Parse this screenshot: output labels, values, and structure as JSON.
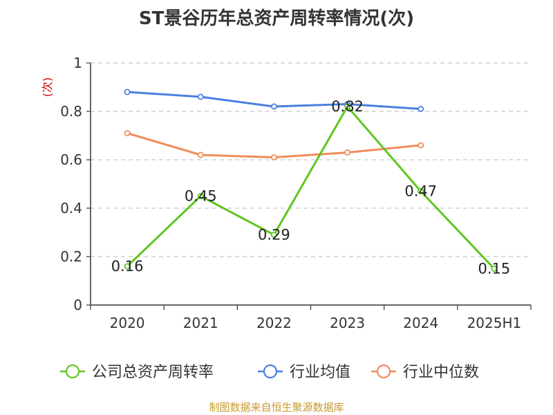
{
  "chart_data": {
    "type": "line",
    "title": "ST景谷历年总资产周转率情况(次)",
    "ylabel": "(次)",
    "xlabel": "",
    "categories": [
      "2020",
      "2021",
      "2022",
      "2023",
      "2024",
      "2025H1"
    ],
    "ylim": [
      0,
      1
    ],
    "yticks": [
      "0",
      "0.2",
      "0.4",
      "0.6",
      "0.8",
      "1"
    ],
    "grid": true,
    "legend_position": "bottom",
    "series": [
      {
        "name": "公司总资产周转率",
        "color": "#5ec61f",
        "values": [
          0.16,
          0.45,
          0.29,
          0.82,
          0.47,
          0.15
        ],
        "data_labels": [
          "0.16",
          "0.45",
          "0.29",
          "0.82",
          "0.47",
          "0.15"
        ]
      },
      {
        "name": "行业均值",
        "color": "#4a7fe0",
        "values": [
          0.88,
          0.86,
          0.82,
          0.83,
          0.81,
          null
        ]
      },
      {
        "name": "行业中位数",
        "color": "#f28b5a",
        "values": [
          0.71,
          0.62,
          0.61,
          0.63,
          0.66,
          null
        ]
      }
    ]
  },
  "source": "制图数据来自恒生聚源数据库"
}
